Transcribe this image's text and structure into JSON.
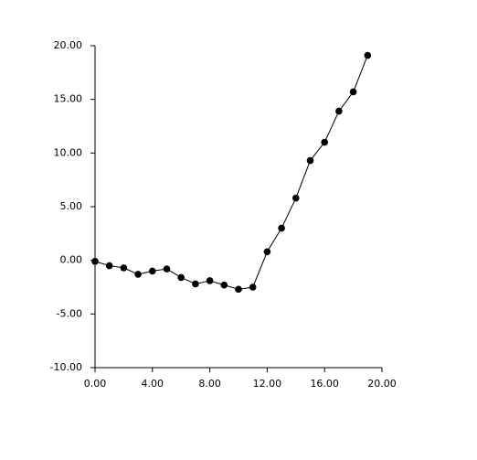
{
  "chart_data": {
    "type": "line",
    "x": [
      0,
      1,
      2,
      3,
      4,
      5,
      6,
      7,
      8,
      9,
      10,
      11,
      12,
      13,
      14,
      15,
      16,
      17,
      18,
      19
    ],
    "series": [
      {
        "color": "#000000",
        "values": [
          -0.1,
          -0.5,
          -0.7,
          -1.3,
          -1.0,
          -0.8,
          -1.6,
          -2.2,
          -1.9,
          -2.3,
          -2.7,
          -2.5,
          0.8,
          3.0,
          5.8,
          9.3,
          11.0,
          13.9,
          15.7,
          19.1
        ]
      }
    ],
    "xlim": [
      0,
      20
    ],
    "xticks": [
      {
        "value": 0,
        "label": "0.00"
      },
      {
        "value": 4,
        "label": "4.00"
      },
      {
        "value": 8,
        "label": "8.00"
      },
      {
        "value": 12,
        "label": "12.00"
      },
      {
        "value": 16,
        "label": "16.00"
      },
      {
        "value": 20,
        "label": "20.00"
      }
    ],
    "ylim": [
      -10,
      20
    ],
    "yticks": [
      {
        "value": -10,
        "label": "-10.00"
      },
      {
        "value": -5,
        "label": "-5.00"
      },
      {
        "value": 0,
        "label": "0.00"
      },
      {
        "value": 5,
        "label": "5.00"
      },
      {
        "value": 10,
        "label": "10.00"
      },
      {
        "value": 15,
        "label": "15.00"
      },
      {
        "value": 20,
        "label": "20.00"
      }
    ]
  }
}
